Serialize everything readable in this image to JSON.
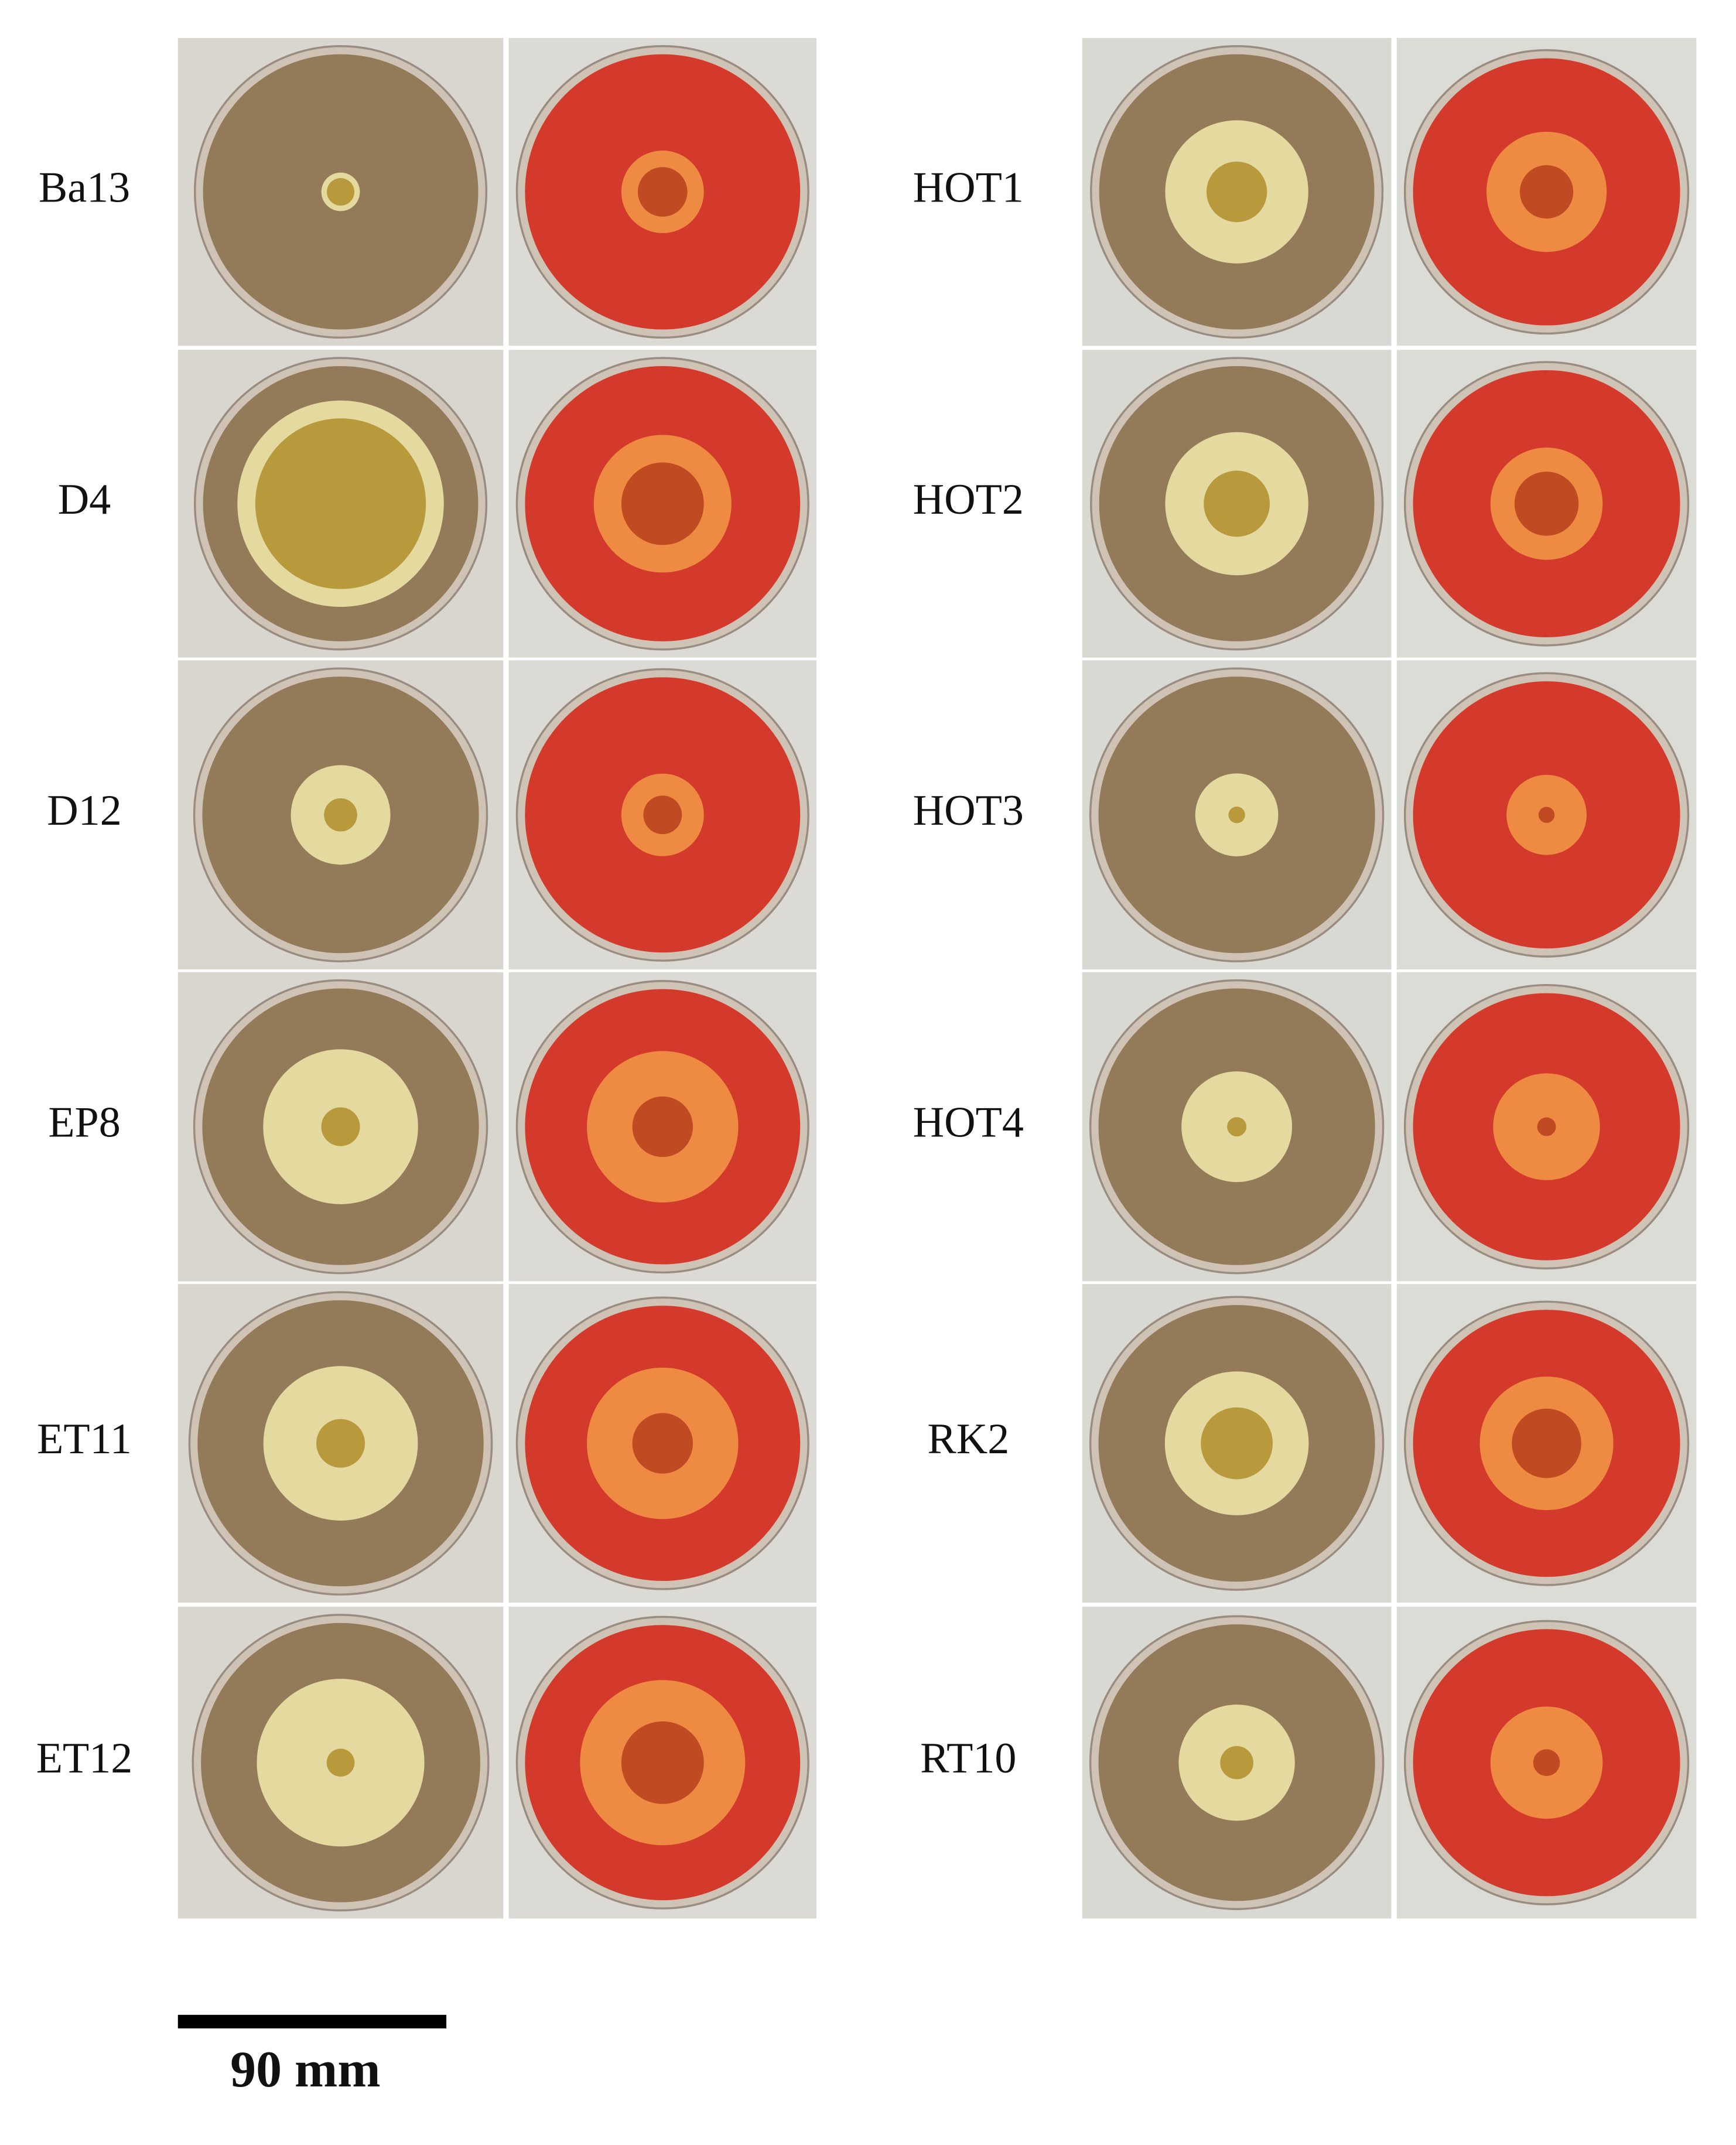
{
  "left_labels": [
    "Ba13",
    "D4",
    "D12",
    "EP8",
    "ET11",
    "ET12"
  ],
  "right_labels": [
    "HOT1",
    "HOT2",
    "HOT3",
    "HOT4",
    "RK2",
    "RT10"
  ],
  "scale_bar_label": "90 mm"
}
